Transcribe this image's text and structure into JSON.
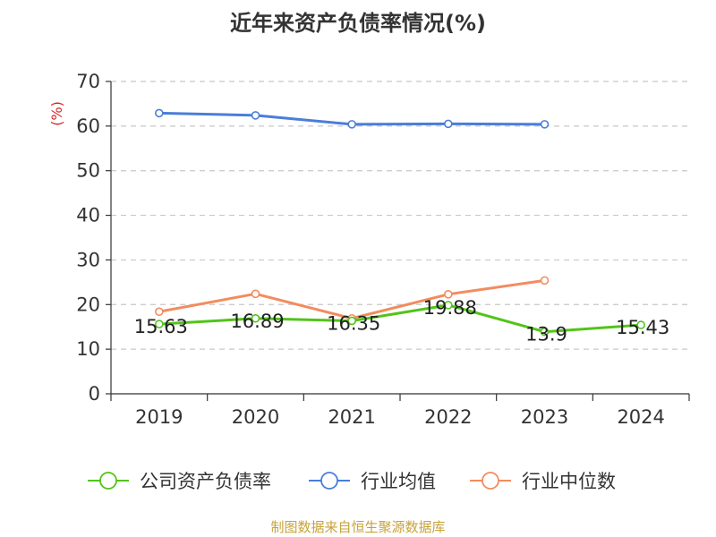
{
  "title": "近年来资产负债率情况(%)",
  "source": "制图数据来自恒生聚源数据库",
  "colors": {
    "company": "#52c41a",
    "industry_avg": "#4a7ed8",
    "industry_median": "#f28c5e",
    "grid": "#c8c8c8",
    "axis": "#333333",
    "unit": "#d62728"
  },
  "chart_data": {
    "type": "line",
    "title": "近年来资产负债率情况(%)",
    "ylabel": "(%)",
    "xlabel": "",
    "categories": [
      "2019",
      "2020",
      "2021",
      "2022",
      "2023",
      "2024"
    ],
    "ylim": [
      0,
      70
    ],
    "yticks": [
      "0",
      "10",
      "20",
      "30",
      "40",
      "50",
      "60",
      "70"
    ],
    "grid": true,
    "legend_position": "bottom",
    "series": [
      {
        "name": "公司资产负债率",
        "values": [
          15.63,
          16.89,
          16.35,
          19.88,
          13.9,
          15.43
        ],
        "labels": [
          "15.63",
          "16.89",
          "16.35",
          "19.88",
          "13.9",
          "15.43"
        ],
        "color": "company"
      },
      {
        "name": "行业均值",
        "values": [
          62.9,
          62.4,
          60.4,
          60.5,
          60.4,
          null
        ],
        "color": "industry_avg"
      },
      {
        "name": "行业中位数",
        "values": [
          18.4,
          22.4,
          16.9,
          22.3,
          25.4,
          null
        ],
        "color": "industry_median"
      }
    ]
  }
}
